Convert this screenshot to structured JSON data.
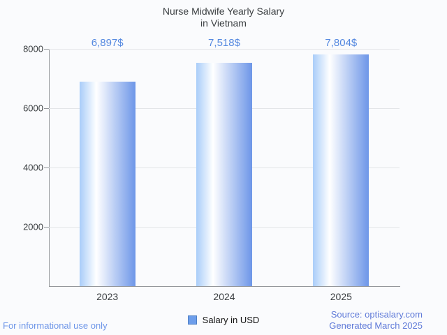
{
  "header": {
    "title_line1": "Nurse Midwife Yearly Salary",
    "title_line2": "in Vietnam"
  },
  "chart_data": {
    "type": "bar",
    "title": "Nurse Midwife Yearly Salary in Vietnam",
    "categories": [
      "2023",
      "2024",
      "2025"
    ],
    "values": [
      6897,
      7518,
      7804
    ],
    "value_labels": [
      "6,897$",
      "7,518$",
      "7,804$"
    ],
    "series": [
      {
        "name": "Salary in USD",
        "values": [
          6897,
          7518,
          7804
        ]
      }
    ],
    "xlabel": "",
    "ylabel": "",
    "ylim": [
      0,
      8000
    ],
    "yticks": [
      2000,
      4000,
      6000,
      8000
    ],
    "ytick_labels": [
      "2000",
      "4000",
      "6000",
      "8000"
    ],
    "grid": true,
    "legend_position": "bottom-center",
    "colors": {
      "bar_gradient_left": "#a9cdf9",
      "bar_gradient_highlight": "#ffffff",
      "bar_gradient_right": "#6d96e8",
      "value_label": "#5589e0",
      "axis": "#94979b",
      "gridline": "#e3e5e8",
      "background": "#fafbfd"
    }
  },
  "legend": {
    "label": "Salary in USD",
    "swatch_color": "#6d9eeb"
  },
  "footer": {
    "disclaimer": "For informational use only",
    "source": "Source: optisalary.com",
    "generated": "Generated March 2025"
  }
}
